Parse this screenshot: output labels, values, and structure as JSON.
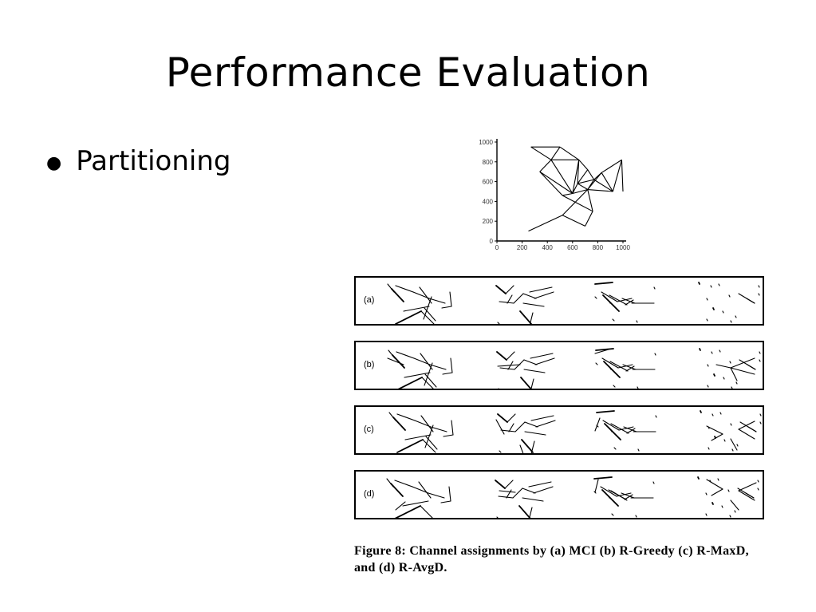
{
  "slide": {
    "title": "Performance Evaluation",
    "bullets": [
      {
        "text": "Partitioning",
        "bullet_glyph": "●"
      }
    ]
  },
  "figure": {
    "topology_plot": {
      "x_ticks": [
        "0",
        "200",
        "400",
        "600",
        "800",
        "1000"
      ],
      "y_ticks": [
        "0",
        "200",
        "400",
        "600",
        "800",
        "1000"
      ],
      "xlim": [
        0,
        1000
      ],
      "ylim": [
        0,
        1000
      ],
      "node_coordinates": [
        [
          270,
          950
        ],
        [
          500,
          950
        ],
        [
          430,
          820
        ],
        [
          650,
          820
        ],
        [
          990,
          820
        ],
        [
          340,
          700
        ],
        [
          720,
          720
        ],
        [
          640,
          580
        ],
        [
          770,
          620
        ],
        [
          830,
          690
        ],
        [
          920,
          500
        ],
        [
          600,
          480
        ],
        [
          720,
          520
        ],
        [
          520,
          460
        ],
        [
          760,
          300
        ],
        [
          520,
          260
        ],
        [
          700,
          150
        ],
        [
          250,
          100
        ],
        [
          1000,
          500
        ]
      ],
      "links": [
        [
          0,
          1
        ],
        [
          0,
          2
        ],
        [
          1,
          2
        ],
        [
          2,
          3
        ],
        [
          1,
          3
        ],
        [
          2,
          5
        ],
        [
          2,
          11
        ],
        [
          3,
          6
        ],
        [
          3,
          7
        ],
        [
          3,
          11
        ],
        [
          5,
          11
        ],
        [
          5,
          13
        ],
        [
          6,
          7
        ],
        [
          6,
          8
        ],
        [
          7,
          8
        ],
        [
          7,
          11
        ],
        [
          7,
          12
        ],
        [
          8,
          9
        ],
        [
          8,
          12
        ],
        [
          9,
          4
        ],
        [
          9,
          10
        ],
        [
          9,
          12
        ],
        [
          4,
          10
        ],
        [
          4,
          18
        ],
        [
          10,
          12
        ],
        [
          11,
          12
        ],
        [
          11,
          13
        ],
        [
          12,
          14
        ],
        [
          13,
          14
        ],
        [
          12,
          15
        ],
        [
          14,
          16
        ],
        [
          16,
          15
        ],
        [
          15,
          17
        ],
        [
          10,
          8
        ]
      ]
    },
    "panels": [
      {
        "label": "(a)"
      },
      {
        "label": "(b)"
      },
      {
        "label": "(c)"
      },
      {
        "label": "(d)"
      }
    ],
    "caption": "Figure 8: Channel assignments by (a) MCI (b) R-Greedy (c) R-MaxD, and (d) R-AvgD."
  },
  "colors": {
    "background": "#ffffff",
    "ink": "#000000",
    "tick_label": "#333333"
  }
}
